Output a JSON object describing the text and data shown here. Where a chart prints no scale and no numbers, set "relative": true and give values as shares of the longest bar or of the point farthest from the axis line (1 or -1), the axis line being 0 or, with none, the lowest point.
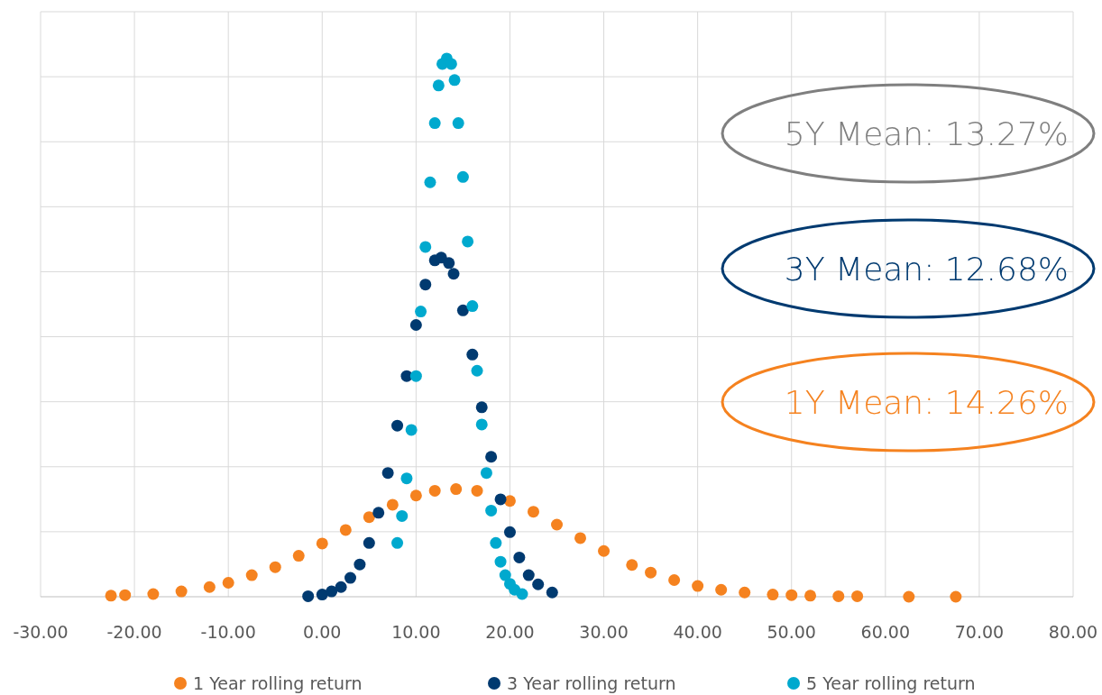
{
  "chart_data": {
    "type": "scatter",
    "relative": true,
    "xlim": [
      -30,
      80
    ],
    "xticks": [
      {
        "value": -30,
        "label": "-30.00"
      },
      {
        "value": -20,
        "label": "-20.00"
      },
      {
        "value": -10,
        "label": "-10.00"
      },
      {
        "value": 0,
        "label": "0.00"
      },
      {
        "value": 10,
        "label": "10.00"
      },
      {
        "value": 20,
        "label": "20.00"
      },
      {
        "value": 30,
        "label": "30.00"
      },
      {
        "value": 40,
        "label": "40.00"
      },
      {
        "value": 50,
        "label": "50.00"
      },
      {
        "value": 60,
        "label": "60.00"
      },
      {
        "value": 70,
        "label": "70.00"
      },
      {
        "value": 80,
        "label": "80.00"
      }
    ],
    "grid": true,
    "legend": "bottom",
    "marker": "circle",
    "series": [
      {
        "name": "1 Year rolling return",
        "color": "#f5821f",
        "x": [
          -22.5,
          -21,
          -18,
          -15,
          -12,
          -10,
          -7.5,
          -5,
          -2.5,
          0,
          2.5,
          5,
          7.5,
          10,
          12,
          14.26,
          16.5,
          20,
          22.5,
          25,
          27.5,
          30,
          33,
          35,
          37.5,
          40,
          42.5,
          45,
          48,
          50,
          52,
          55,
          57,
          62.5,
          67.5
        ],
        "values": [
          0.002,
          0.003,
          0.005,
          0.01,
          0.018,
          0.026,
          0.04,
          0.055,
          0.076,
          0.099,
          0.124,
          0.148,
          0.171,
          0.188,
          0.197,
          0.2,
          0.197,
          0.178,
          0.158,
          0.134,
          0.109,
          0.085,
          0.059,
          0.045,
          0.031,
          0.02,
          0.013,
          0.008,
          0.004,
          0.003,
          0.002,
          0.001,
          0.001,
          0,
          0
        ]
      },
      {
        "name": "3 Year rolling return",
        "color": "#003a70",
        "x": [
          -1.5,
          0,
          1,
          2,
          3,
          4,
          5,
          6,
          7,
          8,
          9,
          10,
          11,
          12,
          12.68,
          13.5,
          14,
          15,
          16,
          17,
          18,
          19,
          20,
          21,
          22,
          23,
          24.5
        ],
        "values": [
          0.001,
          0.004,
          0.01,
          0.018,
          0.035,
          0.06,
          0.1,
          0.156,
          0.23,
          0.318,
          0.41,
          0.505,
          0.58,
          0.625,
          0.63,
          0.62,
          0.6,
          0.532,
          0.45,
          0.352,
          0.26,
          0.181,
          0.12,
          0.073,
          0.04,
          0.023,
          0.008
        ]
      },
      {
        "name": "5 Year rolling return",
        "color": "#00a9ce",
        "x": [
          8,
          8.5,
          9,
          9.5,
          10,
          10.5,
          11,
          11.5,
          12,
          12.4,
          12.8,
          13.27,
          13.75,
          14.1,
          14.5,
          15,
          15.5,
          16,
          16.5,
          17,
          17.5,
          18,
          18.5,
          19,
          19.5,
          20,
          20.5,
          21.3
        ],
        "values": [
          0.1,
          0.15,
          0.22,
          0.31,
          0.41,
          0.53,
          0.65,
          0.77,
          0.88,
          0.95,
          0.99,
          1,
          0.99,
          0.96,
          0.88,
          0.78,
          0.66,
          0.54,
          0.42,
          0.32,
          0.23,
          0.16,
          0.1,
          0.065,
          0.04,
          0.024,
          0.013,
          0.005
        ]
      }
    ],
    "annotations": [
      "1Y Mean: 14.26%",
      "3Y Mean: 12.68%",
      "5Y Mean: 13.27%"
    ]
  }
}
